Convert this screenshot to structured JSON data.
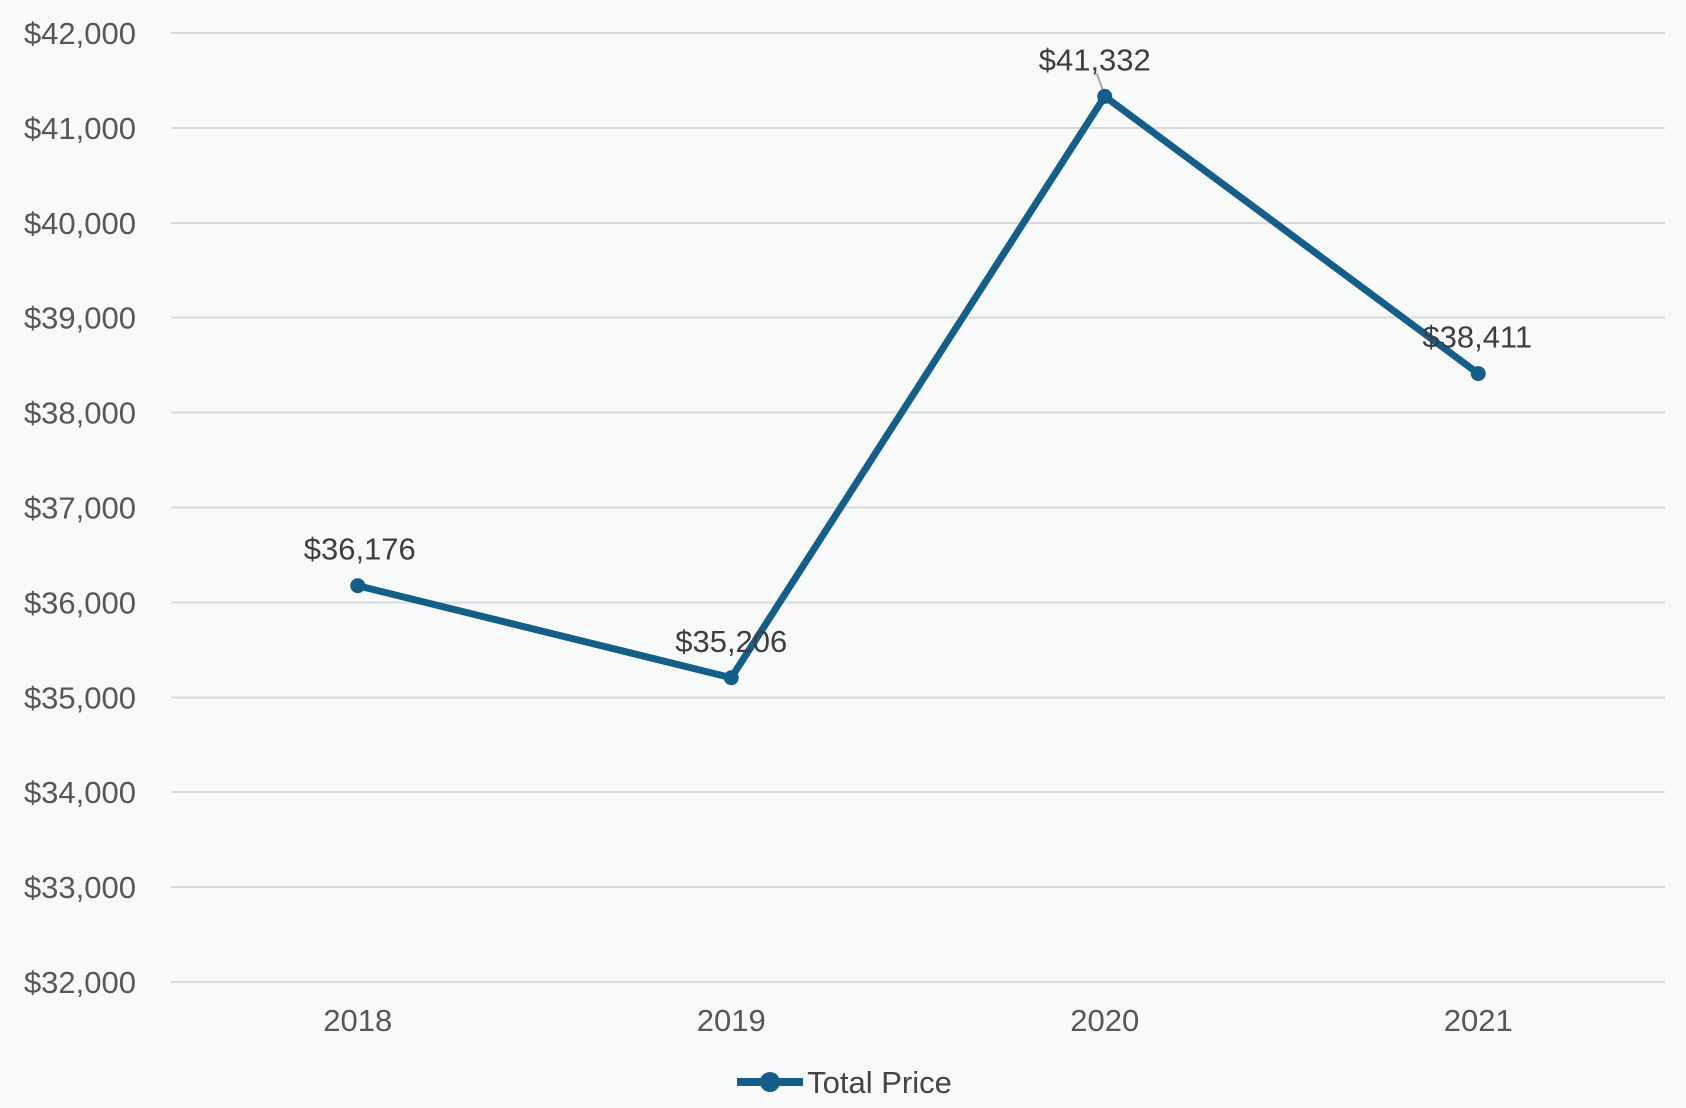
{
  "chart_data": {
    "type": "line",
    "categories": [
      "2018",
      "2019",
      "2020",
      "2021"
    ],
    "series": [
      {
        "name": "Total Price",
        "values": [
          36176,
          35206,
          41332,
          38411
        ],
        "labels": [
          "$36,176",
          "$35,206",
          "$41,332",
          "$38,411"
        ]
      }
    ],
    "title": "",
    "xlabel": "",
    "ylabel": "",
    "ylim": [
      32000,
      42000
    ],
    "y_tick_step": 1000,
    "y_tick_labels": [
      "$32,000",
      "$33,000",
      "$34,000",
      "$35,000",
      "$36,000",
      "$37,000",
      "$38,000",
      "$39,000",
      "$40,000",
      "$41,000",
      "$42,000"
    ],
    "grid": true,
    "legend_position": "bottom-center"
  },
  "colors": {
    "line": "#155e8a",
    "point": "#155e8a",
    "grid": "#d9dadb",
    "tick_text": "#55575a",
    "data_label_text": "#3c3e41",
    "legend_text": "#424448",
    "leader_line": "#a6a6a6",
    "background": "#f8f9f9"
  }
}
